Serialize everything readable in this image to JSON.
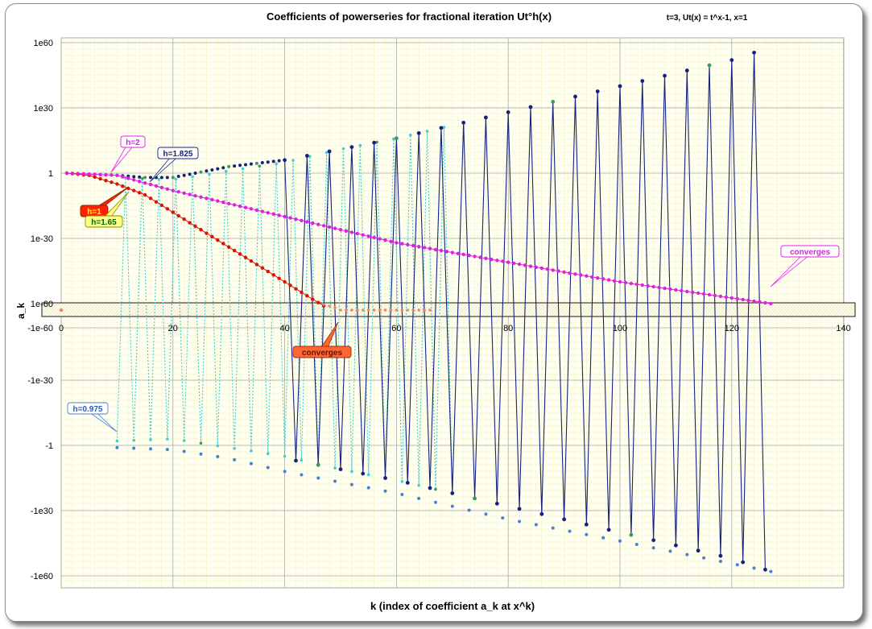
{
  "chart_data": {
    "type": "line",
    "title": "Coefficients of powerseries for fractional iteration Ut°h(x)",
    "subtitle": "t=3, Ut(x) = t^x-1, x=1",
    "xlabel": "k (index of coefficient a_k at x^k)",
    "ylabel": "a_k",
    "xlim": [
      0,
      140
    ],
    "x_ticks": [
      "0",
      "20",
      "40",
      "60",
      "80",
      "100",
      "120",
      "140"
    ],
    "y_scale": "signed-log (symmetric logarithmic)",
    "y_ticks": [
      "1e60",
      "1e30",
      "1",
      "1e-30",
      "1e-60",
      "-1e-60",
      "-1e-30",
      "-1",
      "-1e30",
      "-1e60"
    ],
    "grid": true,
    "legend": "none (inline callout labels)",
    "series": [
      {
        "name": "h=2",
        "color": "#e020e0",
        "k_range": [
          1,
          127
        ],
        "sign_pattern": "all positive",
        "log10_abs_a_k_points": [
          [
            1,
            0
          ],
          [
            10,
            -1
          ],
          [
            20,
            -8
          ],
          [
            40,
            -20
          ],
          [
            60,
            -32
          ],
          [
            80,
            -41
          ],
          [
            100,
            -50
          ],
          [
            127,
            -60
          ]
        ]
      },
      {
        "name": "h=1",
        "color": "#dd1100",
        "k_range": [
          1,
          47
        ],
        "sign_pattern": "all positive",
        "log10_abs_a_k_points": [
          [
            1,
            0
          ],
          [
            5,
            -1
          ],
          [
            10,
            -5
          ],
          [
            15,
            -10
          ],
          [
            20,
            -18
          ],
          [
            25,
            -26
          ],
          [
            30,
            -34
          ],
          [
            35,
            -42
          ],
          [
            40,
            -50
          ],
          [
            45,
            -58
          ],
          [
            47,
            -61
          ]
        ]
      },
      {
        "name": "converges",
        "color": "#e8866a",
        "k_range": [
          47,
          66
        ],
        "sign_pattern": "approximately 0 (|a_k| below 1e-60)",
        "log10_abs_a_k_points": [
          [
            47,
            -61
          ],
          [
            52,
            -62
          ],
          [
            66,
            -62
          ]
        ]
      },
      {
        "name": "h=1.65",
        "color": "#44cccc",
        "k_range": [
          10,
          70
        ],
        "sign_pattern": "alternating positive / negative",
        "log10_abs_a_k_points": [
          [
            10,
            -2
          ],
          [
            20,
            -3
          ],
          [
            30,
            1
          ],
          [
            40,
            5
          ],
          [
            50,
            11
          ],
          [
            60,
            16
          ],
          [
            70,
            22
          ]
        ]
      },
      {
        "name": "h=1.825",
        "color": "#152080",
        "k_range": [
          1,
          127
        ],
        "sign_pattern": "alternating positive / negative",
        "log10_abs_a_k_points": [
          [
            1,
            0
          ],
          [
            10,
            -1
          ],
          [
            15,
            -2
          ],
          [
            20,
            -2
          ],
          [
            30,
            3
          ],
          [
            40,
            6
          ],
          [
            60,
            16
          ],
          [
            80,
            28
          ],
          [
            100,
            40
          ],
          [
            120,
            52
          ],
          [
            127,
            58
          ]
        ]
      },
      {
        "name": "h=0.975",
        "color": "#4a7fcc",
        "k_range": [
          10,
          127
        ],
        "sign_pattern": "negative values",
        "log10_abs_a_k_points": [
          [
            10,
            1
          ],
          [
            20,
            2
          ],
          [
            30,
            6
          ],
          [
            40,
            12
          ],
          [
            60,
            22
          ],
          [
            80,
            34
          ],
          [
            100,
            44
          ],
          [
            127,
            58
          ]
        ]
      }
    ],
    "annotations": [
      "h=2",
      "h=1.825",
      "h=1",
      "h=1.65",
      "h=0.975",
      "converges",
      "converges"
    ]
  }
}
